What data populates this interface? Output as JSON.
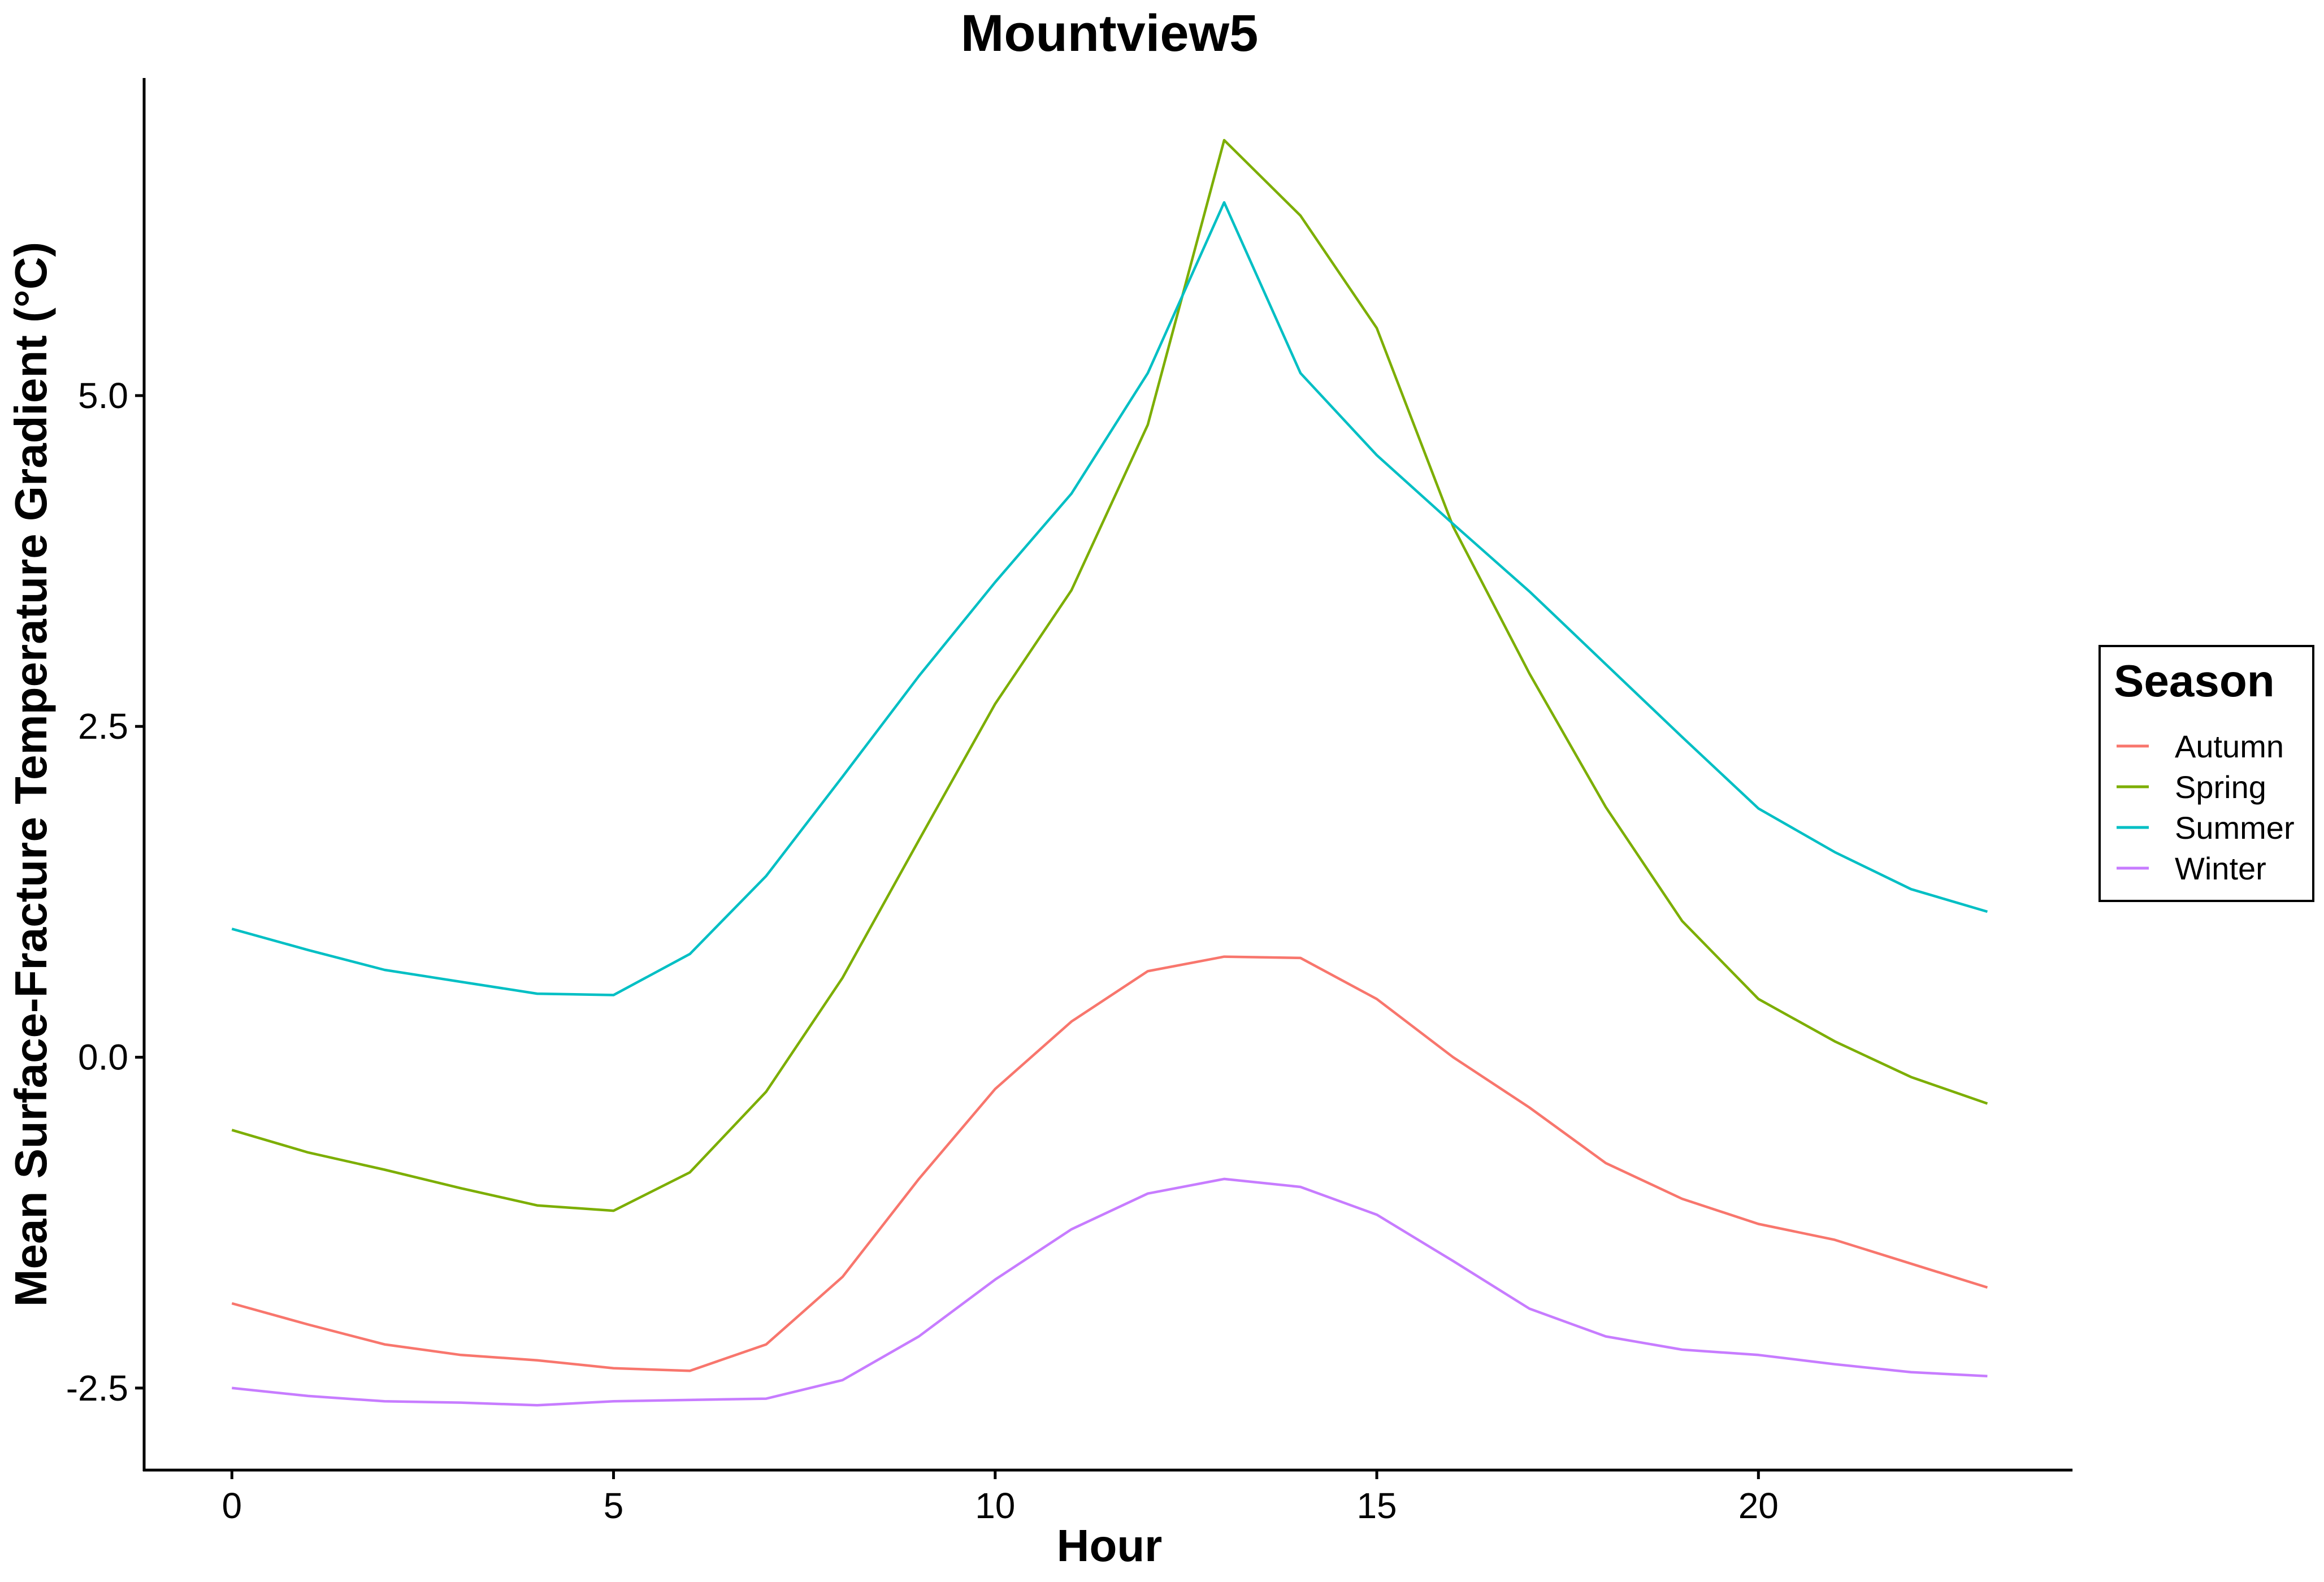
{
  "chart_data": {
    "type": "line",
    "title": "Mountview5",
    "xlabel": "Hour",
    "ylabel": "Mean Surface-Fracture Temperature Gradient (°C)",
    "xlim": [
      -1.15,
      24.1
    ],
    "ylim": [
      -3.12,
      7.4
    ],
    "x_ticks": [
      0,
      5,
      10,
      15,
      20
    ],
    "x_tick_labels": [
      "0",
      "5",
      "10",
      "15",
      "20"
    ],
    "y_ticks": [
      -2.5,
      0,
      2.5,
      5
    ],
    "y_tick_labels": [
      "-2.5",
      "0.0",
      "2.5",
      "5.0"
    ],
    "grid": false,
    "legend": {
      "title": "Season",
      "position": "right"
    },
    "x": [
      0,
      1,
      2,
      3,
      4,
      5,
      6,
      7,
      8,
      9,
      10,
      11,
      12,
      13,
      14,
      15,
      16,
      17,
      18,
      19,
      20,
      21,
      22,
      23
    ],
    "series": [
      {
        "name": "Autumn",
        "color": "#F8766D",
        "values": [
          -1.86,
          -2.02,
          -2.17,
          -2.25,
          -2.29,
          -2.35,
          -2.37,
          -2.17,
          -1.66,
          -0.92,
          -0.24,
          0.27,
          0.65,
          0.76,
          0.75,
          0.44,
          0.0,
          -0.38,
          -0.8,
          -1.07,
          -1.26,
          -1.38,
          -1.56,
          -1.74
        ]
      },
      {
        "name": "Spring",
        "color": "#7CAE00",
        "values": [
          -0.55,
          -0.72,
          -0.85,
          -0.99,
          -1.12,
          -1.16,
          -0.87,
          -0.26,
          0.6,
          1.64,
          2.67,
          3.53,
          4.78,
          6.93,
          6.36,
          5.51,
          4.01,
          2.9,
          1.89,
          1.03,
          0.44,
          0.12,
          -0.15,
          -0.35
        ]
      },
      {
        "name": "Summer",
        "color": "#00BFC4",
        "values": [
          0.97,
          0.81,
          0.66,
          0.57,
          0.48,
          0.47,
          0.78,
          1.37,
          2.12,
          2.88,
          3.59,
          4.26,
          5.17,
          6.46,
          5.17,
          4.55,
          4.03,
          3.52,
          2.97,
          2.42,
          1.88,
          1.55,
          1.27,
          1.1
        ]
      },
      {
        "name": "Winter",
        "color": "#C77CFF",
        "values": [
          -2.5,
          -2.56,
          -2.6,
          -2.61,
          -2.63,
          -2.6,
          -2.59,
          -2.58,
          -2.44,
          -2.11,
          -1.68,
          -1.3,
          -1.03,
          -0.92,
          -0.98,
          -1.19,
          -1.54,
          -1.9,
          -2.11,
          -2.21,
          -2.25,
          -2.32,
          -2.38,
          -2.41
        ]
      }
    ]
  }
}
